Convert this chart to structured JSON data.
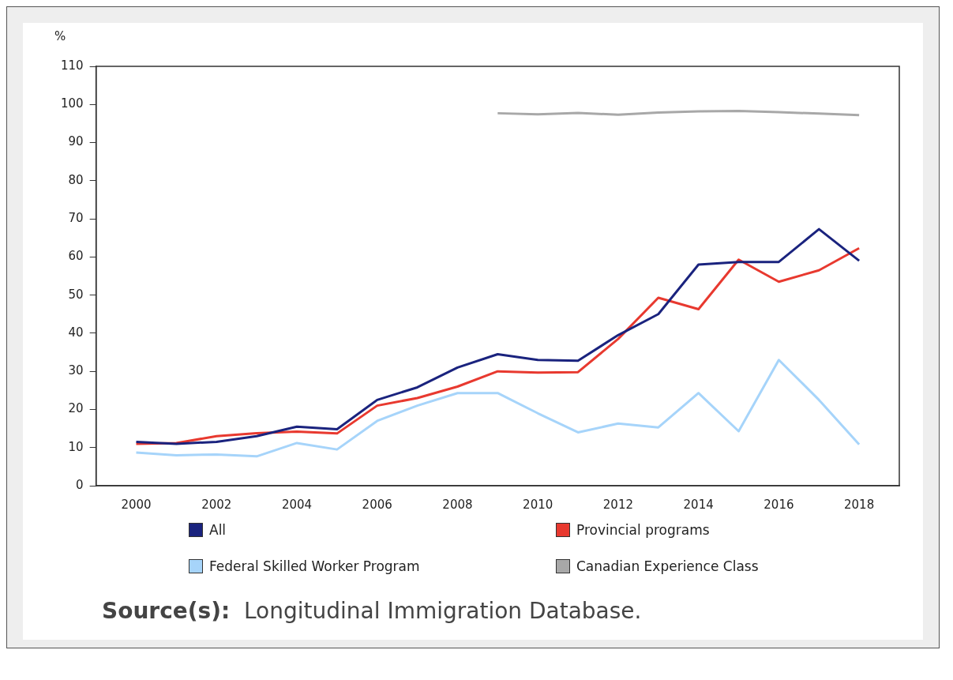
{
  "chart_data": {
    "type": "line",
    "ylabel": "%",
    "x": [
      2000,
      2001,
      2002,
      2003,
      2004,
      2005,
      2006,
      2007,
      2008,
      2009,
      2010,
      2011,
      2012,
      2013,
      2014,
      2015,
      2016,
      2017,
      2018
    ],
    "series": [
      {
        "name": "All",
        "color": "#1a237e",
        "values": [
          11.5,
          11,
          11.5,
          13,
          15.5,
          14.8,
          22.5,
          25.8,
          31,
          34.5,
          33,
          32.8,
          39.5,
          45,
          58,
          58.7,
          58.7,
          67.3,
          59
        ]
      },
      {
        "name": "Provincial programs",
        "color": "#e8392f",
        "values": [
          11,
          11.2,
          13,
          13.8,
          14.2,
          13.7,
          21,
          23,
          26,
          30,
          29.7,
          29.8,
          38.5,
          49.3,
          46.3,
          59.3,
          53.5,
          56.5,
          62.3
        ]
      },
      {
        "name": "Federal Skilled Worker Program",
        "color": "#a6d4fa",
        "values": [
          8.7,
          8,
          8.2,
          7.7,
          11.2,
          9.5,
          17,
          21,
          24.3,
          24.3,
          19,
          14,
          16.3,
          15.3,
          24.3,
          14.3,
          33,
          22.5,
          10.8
        ]
      },
      {
        "name": "Canadian Experience Class",
        "color": "#a8a8a8",
        "values": [
          null,
          null,
          null,
          null,
          null,
          null,
          null,
          null,
          null,
          97.7,
          97.4,
          97.8,
          97.3,
          97.9,
          98.2,
          98.3,
          98,
          97.6,
          97.2
        ]
      }
    ],
    "xlim": [
      1999,
      2019
    ],
    "xticks": [
      2000,
      2002,
      2004,
      2006,
      2008,
      2010,
      2012,
      2014,
      2016,
      2018
    ],
    "ylim": [
      0,
      110
    ],
    "yticks": [
      0,
      10,
      20,
      30,
      40,
      50,
      60,
      70,
      80,
      90,
      100,
      110
    ],
    "grid": false,
    "legend": "bottom",
    "marker": "none",
    "line_style": "solid",
    "annotations": [
      "Source(s):  Longitudinal Immigration Database."
    ]
  }
}
